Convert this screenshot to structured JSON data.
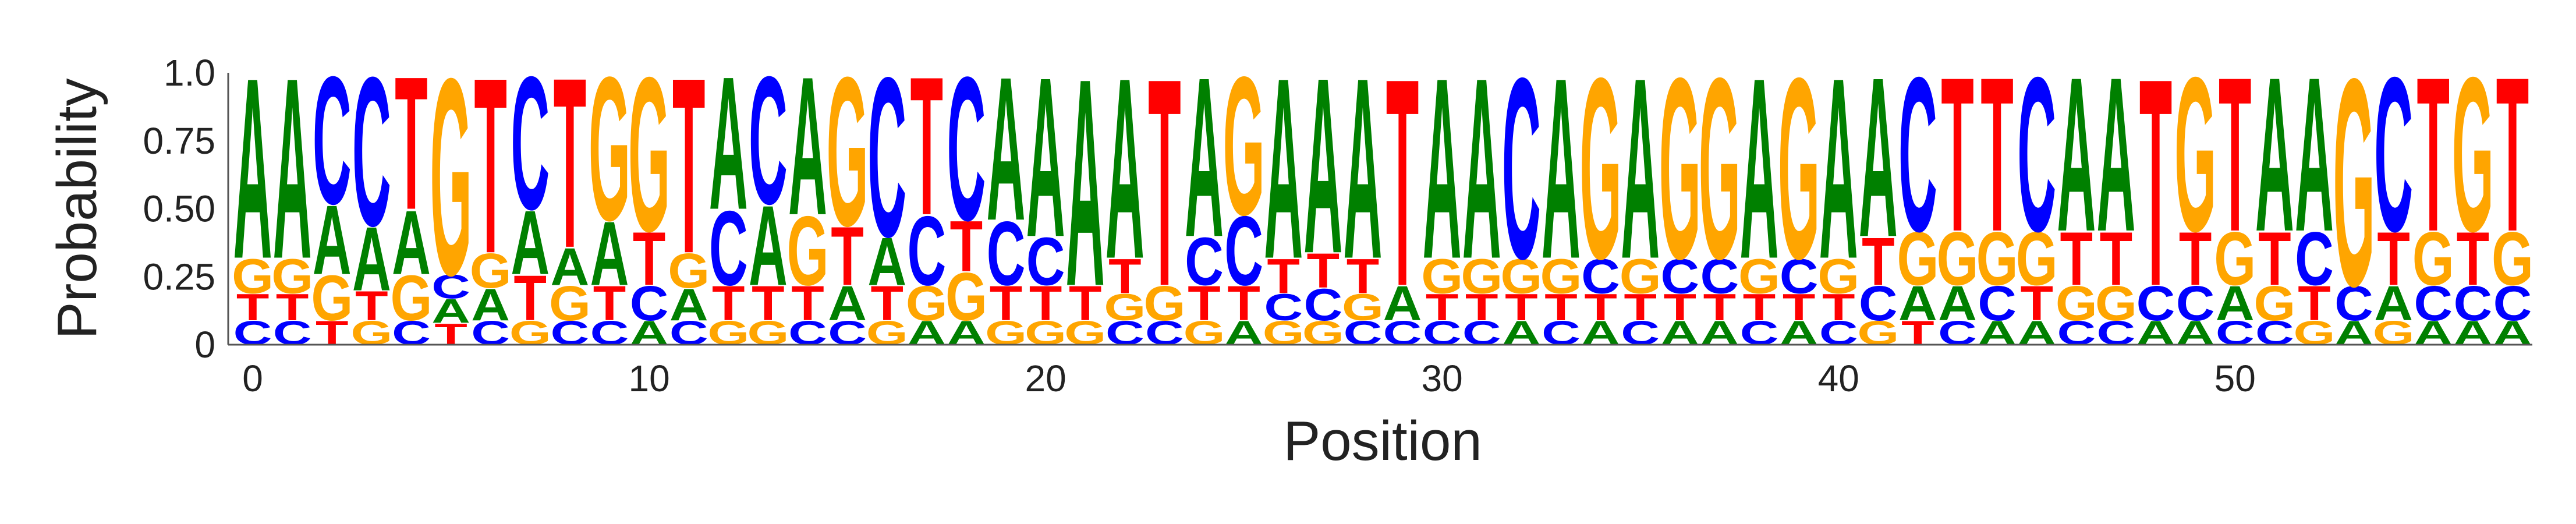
{
  "chart_data": {
    "type": "sequence-logo",
    "xlabel": "Position",
    "ylabel": "Probability",
    "ylim": [
      0,
      1
    ],
    "yticks": [
      "0",
      "0.25",
      "0.50",
      "0.75",
      "1.0"
    ],
    "xticks": [
      "0",
      "10",
      "20",
      "30",
      "40",
      "50"
    ],
    "xtick_positions": [
      0,
      10,
      20,
      30,
      40,
      50
    ],
    "letter_colors": {
      "A": "#008000",
      "C": "#0000ff",
      "G": "#ffa500",
      "T": "#ff0000"
    },
    "positions": [
      {
        "C": 0.09,
        "G": 0.13,
        "T": 0.1,
        "A": 0.68
      },
      {
        "C": 0.09,
        "G": 0.13,
        "T": 0.1,
        "A": 0.68
      },
      {
        "T": 0.09,
        "A": 0.26,
        "G": 0.17,
        "C": 0.48
      },
      {
        "G": 0.09,
        "A": 0.24,
        "T": 0.11,
        "C": 0.56
      },
      {
        "C": 0.09,
        "A": 0.24,
        "G": 0.17,
        "T": 0.5
      },
      {
        "A": 0.09,
        "C": 0.09,
        "T": 0.08,
        "G": 0.74
      },
      {
        "C": 0.09,
        "G": 0.13,
        "A": 0.12,
        "T": 0.66
      },
      {
        "G": 0.09,
        "A": 0.24,
        "T": 0.17,
        "C": 0.5
      },
      {
        "C": 0.09,
        "G": 0.13,
        "A": 0.14,
        "T": 0.64
      },
      {
        "C": 0.09,
        "T": 0.13,
        "A": 0.24,
        "G": 0.54
      },
      {
        "A": 0.09,
        "C": 0.13,
        "T": 0.2,
        "G": 0.58
      },
      {
        "C": 0.09,
        "G": 0.13,
        "A": 0.12,
        "T": 0.66
      },
      {
        "G": 0.09,
        "T": 0.13,
        "C": 0.28,
        "A": 0.5
      },
      {
        "G": 0.09,
        "T": 0.13,
        "A": 0.3,
        "C": 0.48
      },
      {
        "C": 0.09,
        "T": 0.13,
        "G": 0.26,
        "A": 0.52
      },
      {
        "C": 0.09,
        "A": 0.13,
        "T": 0.22,
        "G": 0.56
      },
      {
        "G": 0.09,
        "T": 0.13,
        "A": 0.18,
        "C": 0.6
      },
      {
        "A": 0.09,
        "G": 0.13,
        "C": 0.26,
        "T": 0.52
      },
      {
        "A": 0.09,
        "T": 0.19,
        "G": 0.18,
        "C": 0.54
      },
      {
        "G": 0.09,
        "T": 0.13,
        "C": 0.24,
        "A": 0.54
      },
      {
        "G": 0.09,
        "T": 0.13,
        "C": 0.18,
        "A": 0.6
      },
      {
        "G": 0.09,
        "T": 0.13,
        "G2": 0.0,
        "A": 0.78
      },
      {
        "C": 0.09,
        "T": 0.13,
        "G": 0.1,
        "A": 0.68
      },
      {
        "C": 0.09,
        "G": 0.13,
        "C2": 0.0,
        "T": 0.78
      },
      {
        "G": 0.09,
        "T": 0.13,
        "C": 0.18,
        "A": 0.6
      },
      {
        "A": 0.09,
        "T": 0.13,
        "C": 0.26,
        "G": 0.52
      },
      {
        "G": 0.09,
        "T": 0.13,
        "C": 0.1,
        "A": 0.68
      },
      {
        "G": 0.09,
        "T": 0.13,
        "C": 0.12,
        "A": 0.66
      },
      {
        "C": 0.09,
        "T": 0.13,
        "G": 0.1,
        "A": 0.68
      },
      {
        "C": 0.09,
        "A": 0.13,
        "C2": 0.0,
        "T": 0.78
      },
      {
        "C": 0.09,
        "G": 0.13,
        "T": 0.1,
        "A": 0.68
      },
      {
        "C": 0.09,
        "G": 0.13,
        "T": 0.1,
        "A": 0.68
      },
      {
        "A": 0.09,
        "G": 0.13,
        "T": 0.1,
        "C": 0.68
      },
      {
        "C": 0.09,
        "G": 0.13,
        "T": 0.1,
        "A": 0.68
      },
      {
        "A": 0.09,
        "C": 0.13,
        "T": 0.1,
        "G": 0.68
      },
      {
        "C": 0.09,
        "G": 0.13,
        "T": 0.1,
        "A": 0.68
      },
      {
        "A": 0.09,
        "C": 0.13,
        "T": 0.1,
        "G": 0.68
      },
      {
        "A": 0.09,
        "C": 0.13,
        "T": 0.1,
        "G": 0.68
      },
      {
        "C": 0.09,
        "G": 0.13,
        "T": 0.1,
        "A": 0.68
      },
      {
        "A": 0.09,
        "C": 0.13,
        "T": 0.1,
        "G": 0.68
      },
      {
        "C": 0.09,
        "G": 0.13,
        "T": 0.1,
        "A": 0.68
      },
      {
        "G": 0.09,
        "C": 0.13,
        "T": 0.18,
        "A": 0.6
      },
      {
        "T": 0.09,
        "A": 0.13,
        "G": 0.2,
        "C": 0.58
      },
      {
        "C": 0.09,
        "A": 0.13,
        "G": 0.2,
        "T": 0.58
      },
      {
        "A": 0.09,
        "C": 0.13,
        "G": 0.2,
        "T": 0.58
      },
      {
        "A": 0.09,
        "T": 0.13,
        "G": 0.2,
        "C": 0.58
      },
      {
        "C": 0.09,
        "G": 0.13,
        "T": 0.2,
        "A": 0.58
      },
      {
        "C": 0.09,
        "G": 0.13,
        "T": 0.2,
        "A": 0.58
      },
      {
        "A": 0.09,
        "C": 0.13,
        "A2": 0.0,
        "T": 0.78
      },
      {
        "A": 0.09,
        "C": 0.13,
        "T": 0.2,
        "G": 0.58
      },
      {
        "C": 0.09,
        "A": 0.13,
        "G": 0.2,
        "T": 0.58
      },
      {
        "C": 0.09,
        "G": 0.13,
        "T": 0.2,
        "A": 0.58
      },
      {
        "G": 0.09,
        "T": 0.13,
        "C": 0.2,
        "A": 0.58
      },
      {
        "A": 0.09,
        "C": 0.13,
        "A2": 0.0,
        "G": 0.78
      },
      {
        "G": 0.09,
        "A": 0.13,
        "T": 0.2,
        "C": 0.58
      },
      {
        "A": 0.09,
        "C": 0.13,
        "G": 0.2,
        "T": 0.58
      },
      {
        "A": 0.09,
        "C": 0.13,
        "T": 0.2,
        "G": 0.58
      },
      {
        "A": 0.09,
        "C": 0.13,
        "G": 0.2,
        "T": 0.58
      }
    ]
  }
}
